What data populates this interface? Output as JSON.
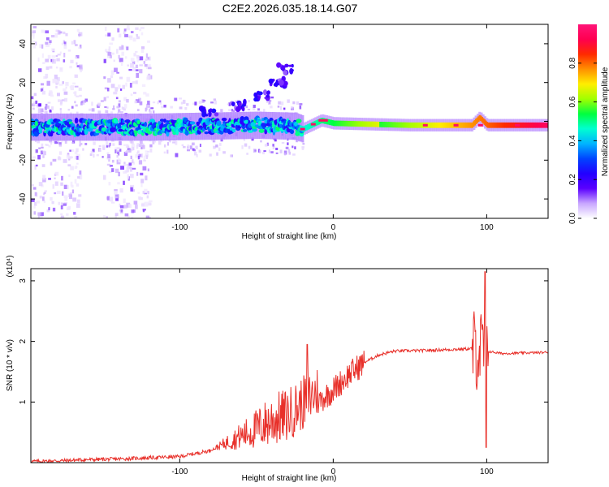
{
  "title": "C2E2.2026.035.18.14.G07",
  "colors": {
    "snr_line": "#e8302a",
    "spectrum_stops": [
      "#ffffff",
      "#c8a6ff",
      "#5a00ff",
      "#2200ff",
      "#0044ff",
      "#00b4ff",
      "#00ffd0",
      "#00ff40",
      "#a0ff00",
      "#ffee00",
      "#ff9000",
      "#ff2a00",
      "#ff0050",
      "#ff1478"
    ]
  },
  "chart_data": [
    {
      "type": "heatmap",
      "name": "spectrogram",
      "title": "",
      "xlabel": "Height of straight line (km)",
      "ylabel": "Frequency (Hz)",
      "xlim": [
        -197,
        140
      ],
      "ylim": [
        -50,
        50
      ],
      "xticks": [
        -100,
        0,
        100
      ],
      "xtick_labels": [
        "-100",
        "0",
        "100"
      ],
      "yticks": [
        -40,
        -20,
        0,
        20,
        40
      ],
      "ytick_labels": [
        "-40",
        "-20",
        "0",
        "20",
        "40"
      ],
      "colorbar": {
        "label": "Normalized spectral amplitude",
        "range": [
          0.0,
          1.0
        ],
        "ticks": [
          0.0,
          0.2,
          0.4,
          0.6,
          0.8
        ],
        "tick_labels": [
          "0.0",
          "0.2",
          "0.4",
          "0.6",
          "0.8"
        ]
      },
      "ridge_center": [
        {
          "x": -197,
          "f": -3
        },
        {
          "x": -120,
          "f": -3
        },
        {
          "x": -50,
          "f": -2
        },
        {
          "x": -25,
          "f": -2.5
        },
        {
          "x": -20,
          "f": -4
        },
        {
          "x": -8,
          "f": 0.5
        },
        {
          "x": 0,
          "f": -1
        },
        {
          "x": 50,
          "f": -2
        },
        {
          "x": 90,
          "f": -2
        },
        {
          "x": 95,
          "f": 2
        },
        {
          "x": 100,
          "f": -2
        },
        {
          "x": 140,
          "f": -2
        }
      ],
      "upper_branch": [
        {
          "x": -80,
          "f": 5
        },
        {
          "x": -60,
          "f": 8
        },
        {
          "x": -45,
          "f": 13
        },
        {
          "x": -35,
          "f": 20
        },
        {
          "x": -30,
          "f": 27
        }
      ],
      "noise_regions_x": [
        [
          -197,
          -165
        ],
        [
          -150,
          -120
        ]
      ]
    },
    {
      "type": "line",
      "name": "snr",
      "title": "",
      "xlabel": "Height of straight line (km)",
      "ylabel": "SNR (10 * v/v)",
      "y_multiplier": "(x10⁴)",
      "xlim": [
        -197,
        140
      ],
      "ylim": [
        0,
        3.2
      ],
      "xticks": [
        -100,
        0,
        100
      ],
      "xtick_labels": [
        "-100",
        "0",
        "100"
      ],
      "yticks": [
        1,
        2,
        3
      ],
      "ytick_labels": [
        "1",
        "2",
        "3"
      ],
      "envelope": [
        {
          "x": -197,
          "y": 0.02
        },
        {
          "x": -180,
          "y": 0.03
        },
        {
          "x": -160,
          "y": 0.05
        },
        {
          "x": -140,
          "y": 0.06
        },
        {
          "x": -120,
          "y": 0.08
        },
        {
          "x": -100,
          "y": 0.1
        },
        {
          "x": -90,
          "y": 0.15
        },
        {
          "x": -80,
          "y": 0.2
        },
        {
          "x": -70,
          "y": 0.28
        },
        {
          "x": -60,
          "y": 0.35
        },
        {
          "x": -50,
          "y": 0.42
        },
        {
          "x": -40,
          "y": 0.52
        },
        {
          "x": -30,
          "y": 0.6
        },
        {
          "x": -20,
          "y": 0.8
        },
        {
          "x": -10,
          "y": 1.0
        },
        {
          "x": 0,
          "y": 1.2
        },
        {
          "x": 10,
          "y": 1.45
        },
        {
          "x": 20,
          "y": 1.65
        },
        {
          "x": 30,
          "y": 1.78
        },
        {
          "x": 40,
          "y": 1.84
        },
        {
          "x": 60,
          "y": 1.85
        },
        {
          "x": 80,
          "y": 1.87
        },
        {
          "x": 90,
          "y": 1.88
        },
        {
          "x": 100,
          "y": 1.84
        },
        {
          "x": 110,
          "y": 1.8
        },
        {
          "x": 140,
          "y": 1.82
        }
      ],
      "features": [
        {
          "x": -17,
          "y": 1.95
        },
        {
          "x": 99,
          "y": 3.15
        },
        {
          "x": 99.5,
          "y": 0.25
        }
      ]
    }
  ]
}
